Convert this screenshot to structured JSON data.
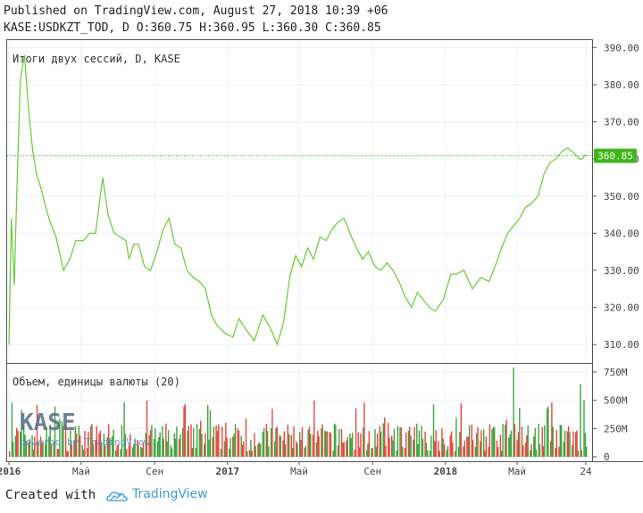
{
  "header": {
    "published": "Published on TradingView.com, August 27, 2018 10:39 +06",
    "ohlc": "KASE:USDKZT_TOD, D O:360.75 H:360.95 L:360.30 C:360.85"
  },
  "footer": {
    "created_with": "Created with",
    "brand": "TradingView"
  },
  "watermark": {
    "logo_text": "KASE",
    "powered_by": "powered by TradingView"
  },
  "colors": {
    "price_line": "#66cc33",
    "last_price_badge": "#3fb618",
    "volume_up": "#3fa33f",
    "volume_down": "#e8453c",
    "grid": "#e9eef2",
    "axis": "#555555"
  },
  "chart_data": [
    {
      "type": "line",
      "title": "Итоги двух сессий, D, KASE",
      "y_ticks": [
        "390.00",
        "380.00",
        "370.00",
        "360.00",
        "350.00",
        "340.00",
        "330.00",
        "320.00",
        "310.00"
      ],
      "ylim": [
        305,
        392
      ],
      "last_price": 360.85,
      "last_price_label": "360.85",
      "x_range": [
        "2016-01-01",
        "2018-08-27"
      ],
      "series": [
        {
          "x": [
            "2016-01-01",
            "2016-01-05",
            "2016-01-10",
            "2016-01-14",
            "2016-01-20",
            "2016-01-27",
            "2016-02-02",
            "2016-02-10",
            "2016-02-16",
            "2016-02-24",
            "2016-03-01",
            "2016-03-10",
            "2016-03-20",
            "2016-04-01",
            "2016-04-12",
            "2016-04-22",
            "2016-05-05",
            "2016-05-15",
            "2016-05-25",
            "2016-06-06",
            "2016-06-15",
            "2016-06-25",
            "2016-07-05",
            "2016-07-15",
            "2016-07-20",
            "2016-07-28",
            "2016-08-05",
            "2016-08-15",
            "2016-08-25",
            "2016-09-05",
            "2016-09-15",
            "2016-09-25",
            "2016-10-05",
            "2016-10-15",
            "2016-10-25",
            "2016-11-05",
            "2016-11-15",
            "2016-11-25",
            "2016-12-05",
            "2016-12-15",
            "2016-12-28",
            "2017-01-10",
            "2017-01-20",
            "2017-02-01",
            "2017-02-15",
            "2017-03-01",
            "2017-03-15",
            "2017-03-25",
            "2017-04-05",
            "2017-04-15",
            "2017-04-25",
            "2017-05-05",
            "2017-05-15",
            "2017-05-25",
            "2017-06-05",
            "2017-06-15",
            "2017-06-25",
            "2017-07-05",
            "2017-07-15",
            "2017-07-25",
            "2017-08-05",
            "2017-08-15",
            "2017-08-25",
            "2017-09-05",
            "2017-09-15",
            "2017-09-25",
            "2017-10-05",
            "2017-10-15",
            "2017-10-25",
            "2017-11-05",
            "2017-11-15",
            "2017-11-25",
            "2017-12-05",
            "2017-12-15",
            "2017-12-28",
            "2018-01-10",
            "2018-01-20",
            "2018-02-01",
            "2018-02-15",
            "2018-03-01",
            "2018-03-15",
            "2018-03-25",
            "2018-04-05",
            "2018-04-15",
            "2018-04-25",
            "2018-05-05",
            "2018-05-15",
            "2018-05-25",
            "2018-06-05",
            "2018-06-15",
            "2018-06-25",
            "2018-07-05",
            "2018-07-15",
            "2018-07-25",
            "2018-08-01",
            "2018-08-08",
            "2018-08-13",
            "2018-08-18",
            "2018-08-22",
            "2018-08-27"
          ],
          "values": [
            310,
            344,
            326,
            350,
            381,
            388,
            375,
            362,
            356,
            352,
            348,
            343,
            339,
            330,
            333,
            338,
            338,
            340,
            340,
            355,
            345,
            340,
            339,
            338,
            333,
            337,
            337,
            331,
            330,
            335,
            341,
            344,
            337,
            336,
            330,
            328,
            327,
            325,
            318,
            315,
            313,
            312,
            317,
            314,
            311,
            318,
            314,
            310,
            316,
            328,
            334,
            331,
            336,
            333,
            339,
            338,
            341,
            343,
            344,
            340,
            336,
            333,
            335,
            331,
            330,
            332,
            330,
            327,
            323,
            320,
            324,
            322,
            320,
            319,
            322,
            329,
            329,
            330,
            325,
            328,
            327,
            331,
            336,
            340,
            342,
            344,
            347,
            348,
            350,
            356,
            359,
            360,
            362,
            363,
            362,
            361,
            360,
            360,
            361,
            360.85
          ]
        }
      ]
    },
    {
      "type": "bar",
      "title": "Объем, единицы валюты (20)",
      "y_ticks": [
        "750M",
        "500M",
        "250M",
        "0"
      ],
      "ylim": [
        0,
        820
      ],
      "x_ticks": [
        "2016",
        "Май",
        "Сен",
        "2017",
        "Май",
        "Сен",
        "2018",
        "Май",
        "24"
      ],
      "x_tick_dates": [
        "2016-01-01",
        "2016-05-01",
        "2016-09-01",
        "2017-01-01",
        "2017-05-01",
        "2017-09-01",
        "2018-01-01",
        "2018-05-01",
        "2018-08-24"
      ],
      "notable_bars": [
        {
          "x": "2018-04-25",
          "value": 790,
          "direction": "up"
        },
        {
          "x": "2018-08-15",
          "value": 640,
          "direction": "up"
        },
        {
          "x": "2018-08-20",
          "value": 500,
          "direction": "up"
        },
        {
          "x": "2016-01-05",
          "value": 480,
          "direction": "up"
        }
      ],
      "typical_range": [
        50,
        300
      ]
    }
  ]
}
